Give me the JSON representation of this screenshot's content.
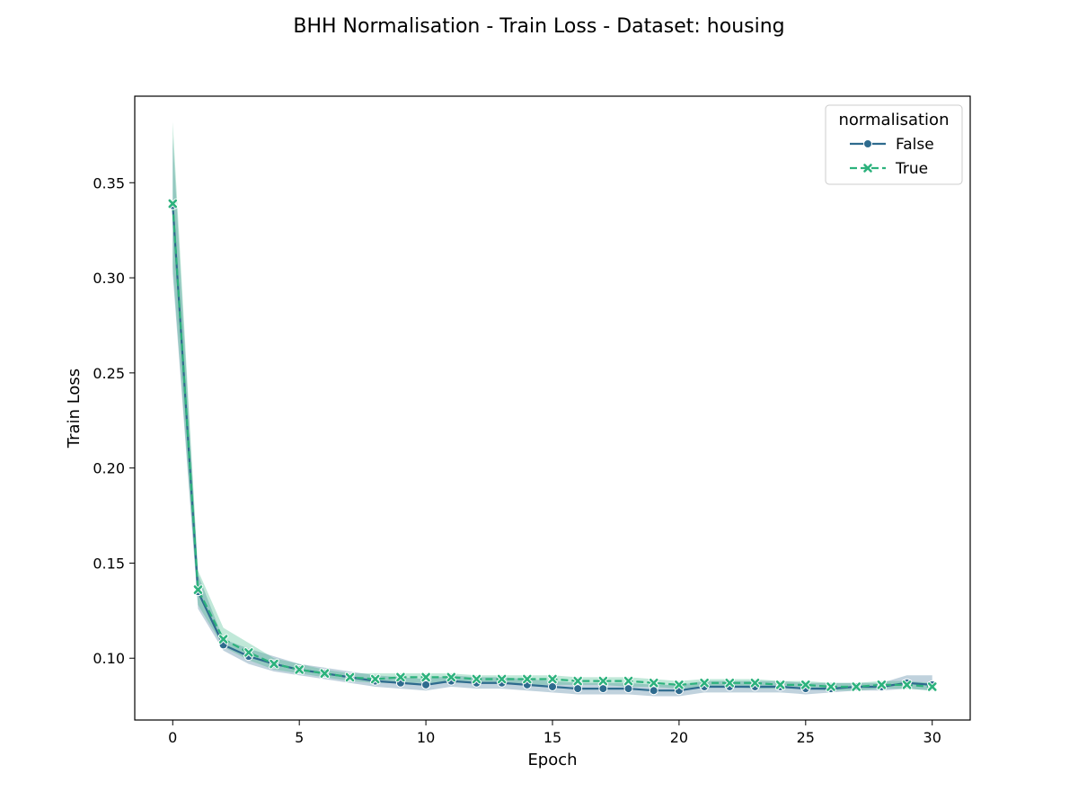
{
  "chart_data": {
    "type": "line",
    "title": "BHH Normalisation - Train Loss - Dataset: housing",
    "xlabel": "Epoch",
    "ylabel": "Train Loss",
    "xlim": [
      -1.5,
      31.5
    ],
    "ylim": [
      0.0675,
      0.3955
    ],
    "xticks": [
      0,
      5,
      10,
      15,
      20,
      25,
      30
    ],
    "xtick_labels": [
      "0",
      "5",
      "10",
      "15",
      "20",
      "25",
      "30"
    ],
    "yticks": [
      0.1,
      0.15,
      0.2,
      0.25,
      0.3,
      0.35
    ],
    "ytick_labels": [
      "0.10",
      "0.15",
      "0.20",
      "0.25",
      "0.30",
      "0.35"
    ],
    "grid": false,
    "legend": {
      "title": "normalisation",
      "position": "top-right"
    },
    "x": [
      0,
      1,
      2,
      3,
      4,
      5,
      6,
      7,
      8,
      9,
      10,
      11,
      12,
      13,
      14,
      15,
      16,
      17,
      18,
      19,
      20,
      21,
      22,
      23,
      24,
      25,
      26,
      27,
      28,
      29,
      30
    ],
    "series": [
      {
        "name": "False",
        "color": "#2e6b8e",
        "marker": "circle",
        "line_style": "solid",
        "values": [
          0.338,
          0.135,
          0.107,
          0.101,
          0.097,
          0.094,
          0.092,
          0.09,
          0.088,
          0.087,
          0.086,
          0.088,
          0.087,
          0.087,
          0.086,
          0.085,
          0.084,
          0.084,
          0.084,
          0.083,
          0.083,
          0.085,
          0.085,
          0.085,
          0.085,
          0.084,
          0.084,
          0.085,
          0.085,
          0.087,
          0.086
        ],
        "lower": [
          0.302,
          0.126,
          0.104,
          0.097,
          0.093,
          0.091,
          0.089,
          0.087,
          0.085,
          0.084,
          0.083,
          0.085,
          0.084,
          0.084,
          0.083,
          0.082,
          0.081,
          0.081,
          0.081,
          0.08,
          0.08,
          0.082,
          0.082,
          0.082,
          0.082,
          0.081,
          0.082,
          0.083,
          0.083,
          0.084,
          0.083
        ],
        "upper": [
          0.374,
          0.144,
          0.11,
          0.105,
          0.101,
          0.097,
          0.095,
          0.093,
          0.091,
          0.09,
          0.089,
          0.091,
          0.09,
          0.09,
          0.089,
          0.088,
          0.087,
          0.087,
          0.087,
          0.086,
          0.086,
          0.088,
          0.088,
          0.088,
          0.088,
          0.087,
          0.087,
          0.087,
          0.087,
          0.091,
          0.091
        ]
      },
      {
        "name": "True",
        "color": "#2db27d",
        "marker": "x",
        "line_style": "dashed",
        "values": [
          0.339,
          0.136,
          0.11,
          0.103,
          0.097,
          0.094,
          0.092,
          0.09,
          0.089,
          0.09,
          0.09,
          0.09,
          0.089,
          0.089,
          0.089,
          0.089,
          0.088,
          0.088,
          0.088,
          0.087,
          0.086,
          0.087,
          0.087,
          0.087,
          0.086,
          0.086,
          0.085,
          0.085,
          0.086,
          0.086,
          0.085
        ],
        "lower": [
          0.306,
          0.128,
          0.106,
          0.099,
          0.094,
          0.092,
          0.09,
          0.088,
          0.087,
          0.087,
          0.087,
          0.087,
          0.087,
          0.087,
          0.086,
          0.086,
          0.086,
          0.086,
          0.085,
          0.085,
          0.084,
          0.085,
          0.085,
          0.084,
          0.084,
          0.084,
          0.083,
          0.083,
          0.084,
          0.084,
          0.083
        ],
        "upper": [
          0.382,
          0.146,
          0.116,
          0.108,
          0.1,
          0.097,
          0.094,
          0.092,
          0.092,
          0.092,
          0.092,
          0.092,
          0.091,
          0.091,
          0.091,
          0.091,
          0.09,
          0.09,
          0.09,
          0.089,
          0.088,
          0.089,
          0.089,
          0.089,
          0.088,
          0.088,
          0.087,
          0.087,
          0.088,
          0.088,
          0.087
        ]
      }
    ]
  }
}
